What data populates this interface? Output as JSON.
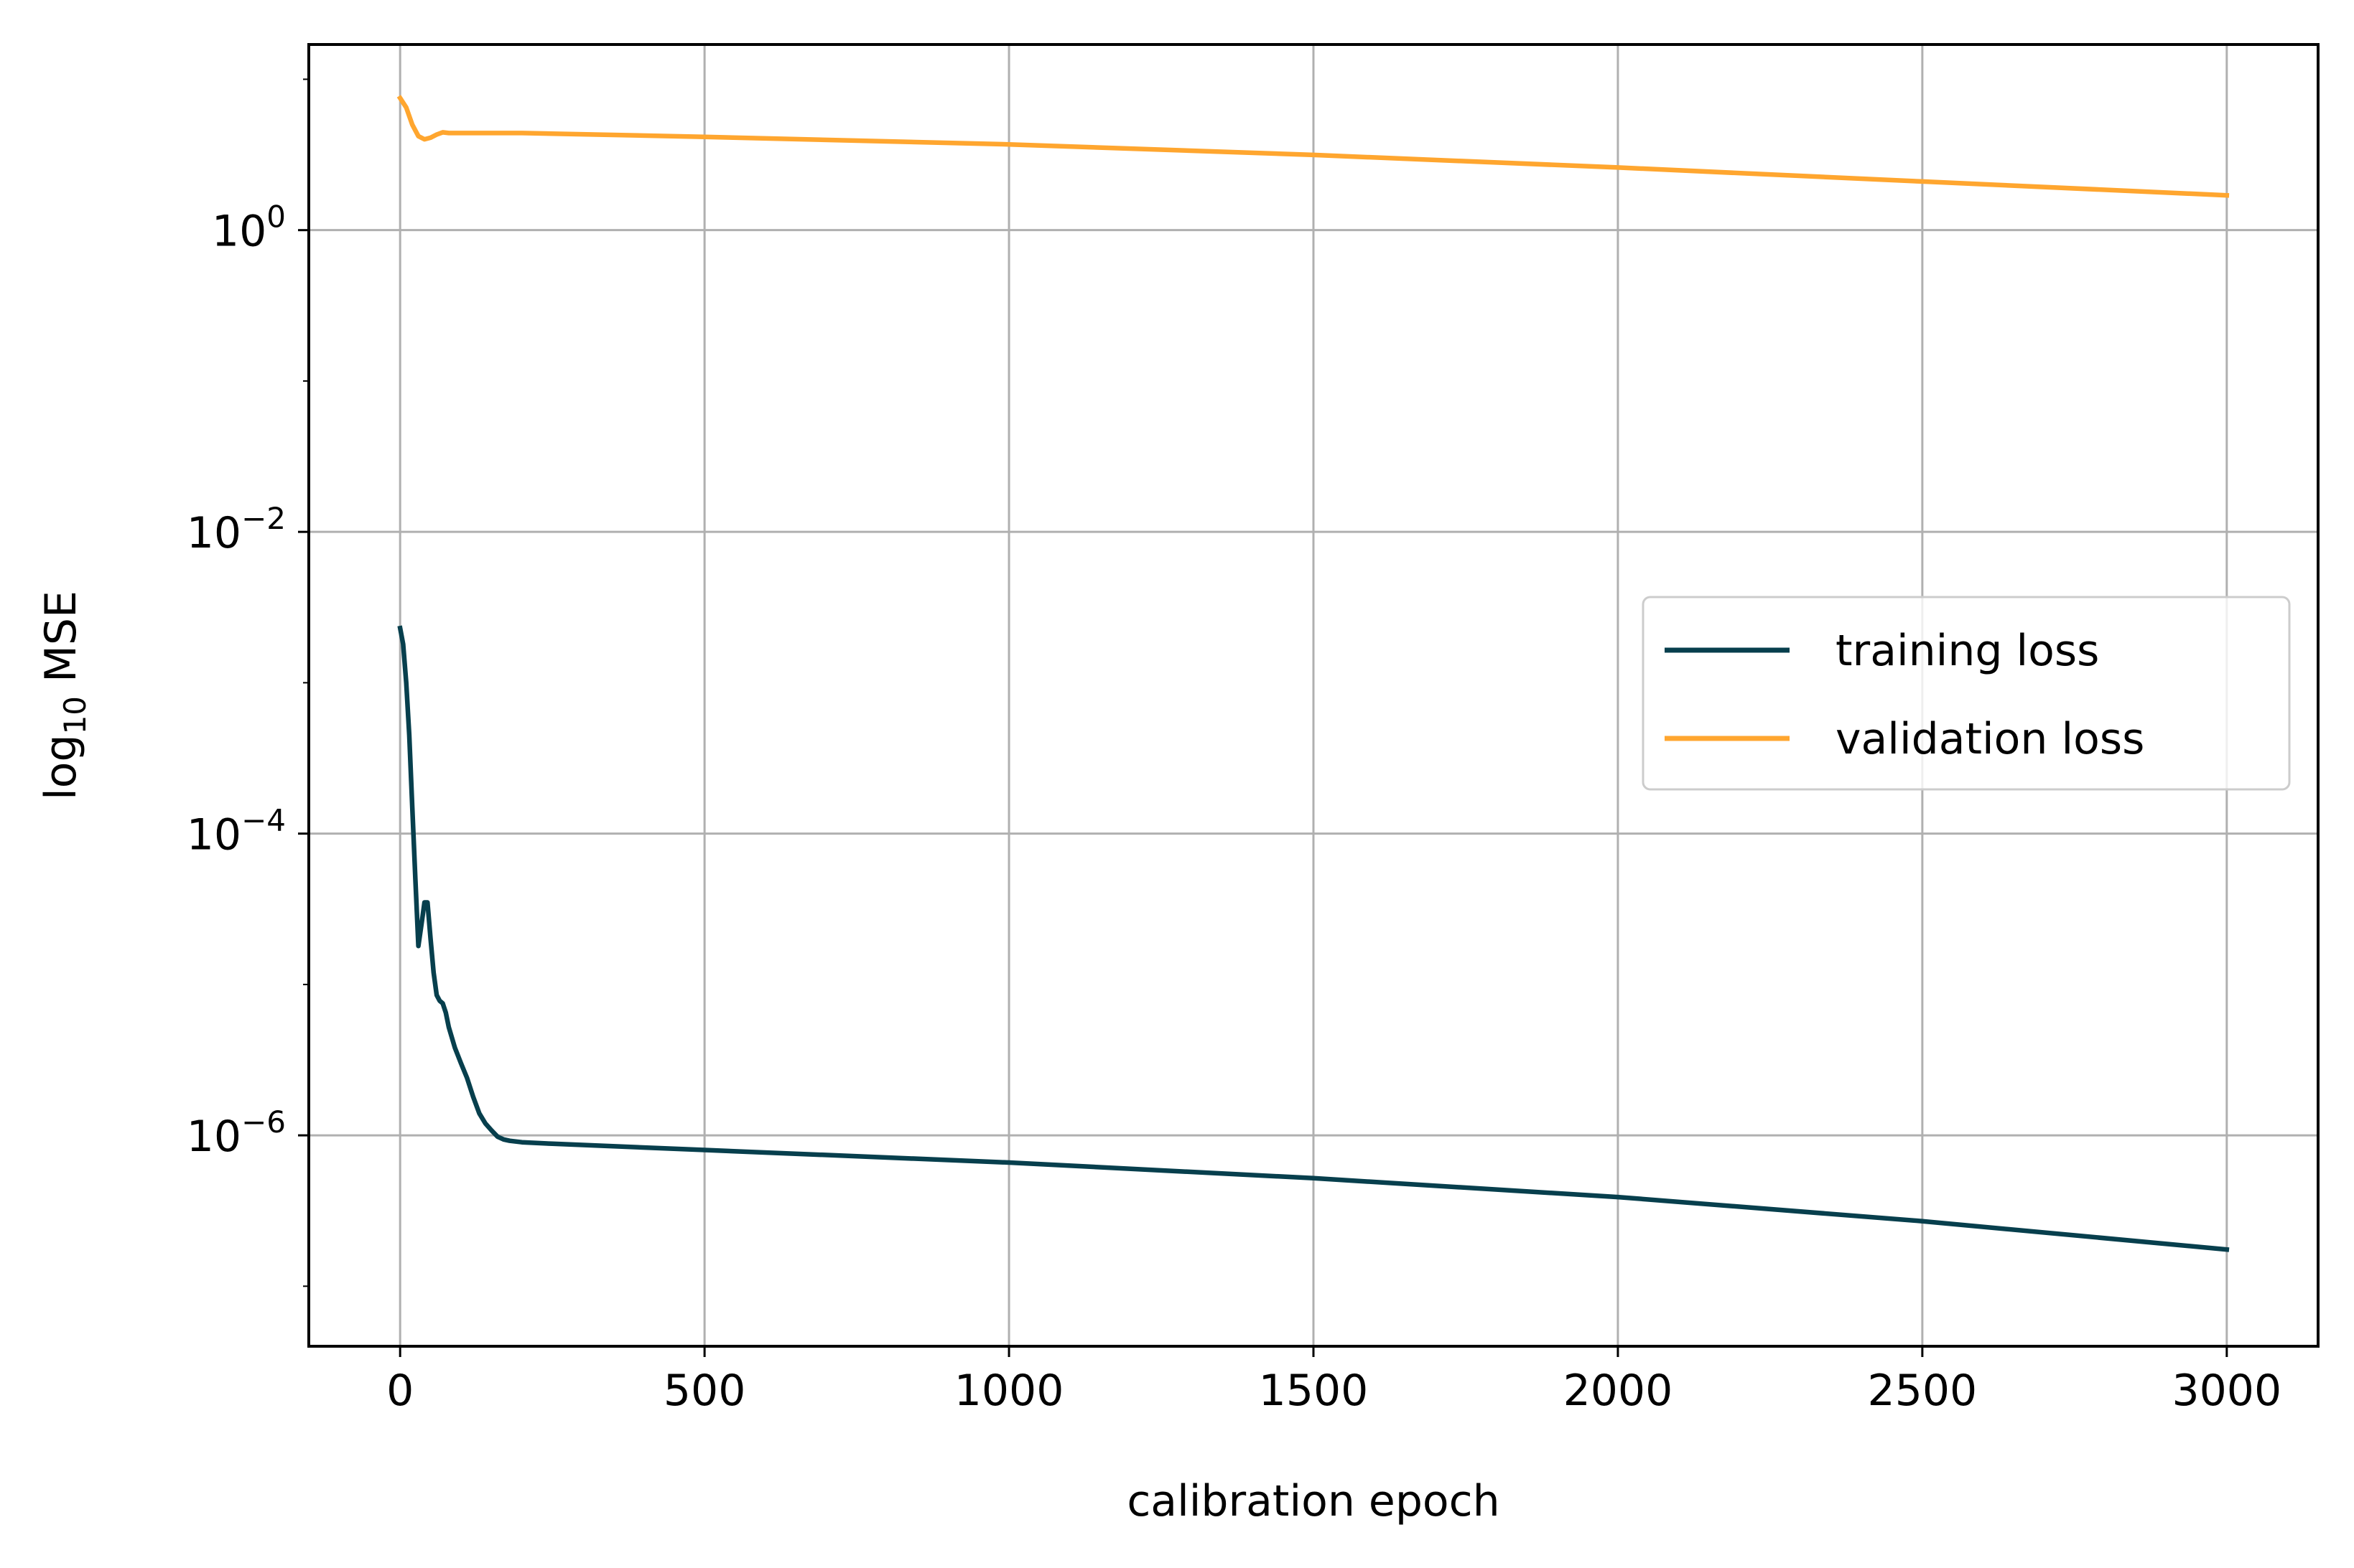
{
  "chart_data": {
    "type": "line",
    "title": "",
    "xlabel": "calibration epoch",
    "ylabel": {
      "base": "log",
      "sub": "10",
      "rest": " MSE"
    },
    "yscale": "log",
    "xlim": [
      -150,
      3150
    ],
    "ylim": [
      4e-08,
      17
    ],
    "grid": true,
    "legend_position": "center-right",
    "x_ticks": [
      {
        "value": 0,
        "label": "0"
      },
      {
        "value": 500,
        "label": "500"
      },
      {
        "value": 1000,
        "label": "1000"
      },
      {
        "value": 1500,
        "label": "1500"
      },
      {
        "value": 2000,
        "label": "2000"
      },
      {
        "value": 2500,
        "label": "2500"
      },
      {
        "value": 3000,
        "label": "3000"
      }
    ],
    "y_ticks": [
      {
        "value": 1,
        "base": "10",
        "exp": "0"
      },
      {
        "value": 0.01,
        "base": "10",
        "exp": "−2"
      },
      {
        "value": 0.0001,
        "base": "10",
        "exp": "−4"
      },
      {
        "value": 1e-06,
        "base": "10",
        "exp": "−6"
      }
    ],
    "series": [
      {
        "name": "training loss",
        "color": "#073F4D",
        "points": [
          [
            0,
            0.0023
          ],
          [
            5,
            0.0018
          ],
          [
            10,
            0.001
          ],
          [
            15,
            0.00045
          ],
          [
            20,
            0.00015
          ],
          [
            25,
            5e-05
          ],
          [
            30,
            1.8e-05
          ],
          [
            35,
            2.5e-05
          ],
          [
            40,
            3.5e-05
          ],
          [
            45,
            3.5e-05
          ],
          [
            50,
            2e-05
          ],
          [
            55,
            1.2e-05
          ],
          [
            60,
            8.5e-06
          ],
          [
            65,
            7.8e-06
          ],
          [
            70,
            7.5e-06
          ],
          [
            75,
            6.5e-06
          ],
          [
            80,
            5.2e-06
          ],
          [
            90,
            3.8e-06
          ],
          [
            100,
            3e-06
          ],
          [
            110,
            2.4e-06
          ],
          [
            120,
            1.8e-06
          ],
          [
            130,
            1.4e-06
          ],
          [
            140,
            1.2e-06
          ],
          [
            150,
            1.08e-06
          ],
          [
            160,
            9.8e-07
          ],
          [
            170,
            9.4e-07
          ],
          [
            180,
            9.2e-07
          ],
          [
            200,
            9e-07
          ],
          [
            250,
            8.8e-07
          ],
          [
            500,
            8e-07
          ],
          [
            1000,
            6.6e-07
          ],
          [
            1500,
            5.2e-07
          ],
          [
            2000,
            3.9e-07
          ],
          [
            2500,
            2.7e-07
          ],
          [
            3000,
            1.75e-07
          ]
        ]
      },
      {
        "name": "validation loss",
        "color": "#FFA62F",
        "points": [
          [
            0,
            7.5
          ],
          [
            10,
            6.5
          ],
          [
            20,
            5.0
          ],
          [
            30,
            4.2
          ],
          [
            40,
            4.0
          ],
          [
            50,
            4.1
          ],
          [
            60,
            4.3
          ],
          [
            70,
            4.45
          ],
          [
            80,
            4.4
          ],
          [
            100,
            4.4
          ],
          [
            200,
            4.4
          ],
          [
            500,
            4.15
          ],
          [
            1000,
            3.7
          ],
          [
            1500,
            3.15
          ],
          [
            2000,
            2.6
          ],
          [
            2500,
            2.1
          ],
          [
            3000,
            1.7
          ]
        ]
      }
    ]
  }
}
